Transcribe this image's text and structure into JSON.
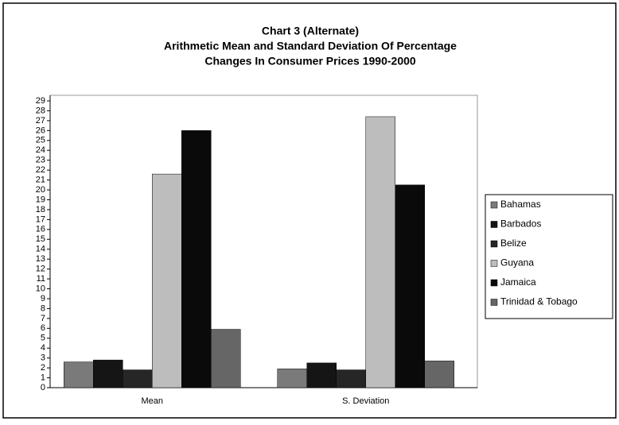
{
  "chart_data": {
    "type": "bar",
    "title": [
      "Chart 3 (Alternate)",
      "Arithmetic Mean and Standard Deviation Of Percentage",
      "Changes In Consumer Prices 1990-2000"
    ],
    "categories": [
      "Mean",
      "S. Deviation"
    ],
    "series": [
      {
        "name": "Bahamas",
        "color": "#7a7a7a",
        "values": [
          2.6,
          1.9
        ]
      },
      {
        "name": "Barbados",
        "color": "#151515",
        "values": [
          2.8,
          2.5
        ]
      },
      {
        "name": "Belize",
        "color": "#262626",
        "values": [
          1.8,
          1.8
        ]
      },
      {
        "name": "Guyana",
        "color": "#bdbdbd",
        "values": [
          21.6,
          27.4
        ]
      },
      {
        "name": "Jamaica",
        "color": "#0a0a0a",
        "values": [
          26,
          20.5
        ]
      },
      {
        "name": "Trinidad & Tobago",
        "color": "#666666",
        "values": [
          5.9,
          2.7
        ]
      }
    ],
    "ylim": [
      0,
      29
    ],
    "yticks": [
      0,
      1,
      2,
      3,
      4,
      5,
      6,
      7,
      8,
      9,
      10,
      11,
      12,
      13,
      14,
      15,
      16,
      17,
      18,
      19,
      20,
      21,
      22,
      23,
      24,
      25,
      26,
      27,
      28,
      29
    ],
    "legend": "right"
  }
}
